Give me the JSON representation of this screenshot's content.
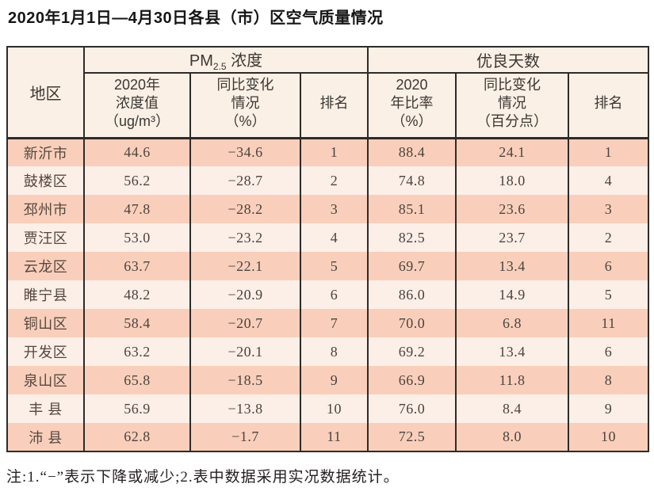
{
  "page": {
    "title": "2020年1月1日—4月30日各县（市）区空气质量情况",
    "footnote": "注:1.“−”表示下降或减少;2.表中数据采用实况数据统计。"
  },
  "colors": {
    "row_stripe_dark": "#f9cfbb",
    "row_stripe_light": "#fcefe8",
    "header_background": "#fbf0e5",
    "border": "#2f2b28",
    "data_text": "#4b433e"
  },
  "table": {
    "corner_header": "地区",
    "group_pm25": {
      "prefix": "PM",
      "sub": "2.5",
      "suffix": " 浓度"
    },
    "group_good_days": "优良天数",
    "subheaders": {
      "pm_value": {
        "l1": "2020年",
        "l2": "浓度值",
        "l3": "（ug/m³）"
      },
      "pm_change": {
        "l1": "同比变化",
        "l2": "情况",
        "l3": "（%）"
      },
      "pm_rank": "排名",
      "days_rate": {
        "l1": "2020",
        "l2": "年比率",
        "l3": "（%）"
      },
      "days_change": {
        "l1": "同比变化",
        "l2": "情况",
        "l3": "（百分点）"
      },
      "days_rank": "排名"
    },
    "rows": [
      {
        "region": "新沂市",
        "pm_value": "44.6",
        "pm_change": "−34.6",
        "pm_rank": "1",
        "days_rate": "88.4",
        "days_change": "24.1",
        "days_rank": "1"
      },
      {
        "region": "鼓楼区",
        "pm_value": "56.2",
        "pm_change": "−28.7",
        "pm_rank": "2",
        "days_rate": "74.8",
        "days_change": "18.0",
        "days_rank": "4"
      },
      {
        "region": "邳州市",
        "pm_value": "47.8",
        "pm_change": "−28.2",
        "pm_rank": "3",
        "days_rate": "85.1",
        "days_change": "23.6",
        "days_rank": "3"
      },
      {
        "region": "贾汪区",
        "pm_value": "53.0",
        "pm_change": "−23.2",
        "pm_rank": "4",
        "days_rate": "82.5",
        "days_change": "23.7",
        "days_rank": "2"
      },
      {
        "region": "云龙区",
        "pm_value": "63.7",
        "pm_change": "−22.1",
        "pm_rank": "5",
        "days_rate": "69.7",
        "days_change": "13.4",
        "days_rank": "6"
      },
      {
        "region": "睢宁县",
        "pm_value": "48.2",
        "pm_change": "−20.9",
        "pm_rank": "6",
        "days_rate": "86.0",
        "days_change": "14.9",
        "days_rank": "5"
      },
      {
        "region": "铜山区",
        "pm_value": "58.4",
        "pm_change": "−20.7",
        "pm_rank": "7",
        "days_rate": "70.0",
        "days_change": "6.8",
        "days_rank": "11"
      },
      {
        "region": "开发区",
        "pm_value": "63.2",
        "pm_change": "−20.1",
        "pm_rank": "8",
        "days_rate": "69.2",
        "days_change": "13.4",
        "days_rank": "6"
      },
      {
        "region": "泉山区",
        "pm_value": "65.8",
        "pm_change": "−18.5",
        "pm_rank": "9",
        "days_rate": "66.9",
        "days_change": "11.8",
        "days_rank": "8"
      },
      {
        "region": "丰 县",
        "pm_value": "56.9",
        "pm_change": "−13.8",
        "pm_rank": "10",
        "days_rate": "76.0",
        "days_change": "8.4",
        "days_rank": "9"
      },
      {
        "region": "沛 县",
        "pm_value": "62.8",
        "pm_change": "−1.7",
        "pm_rank": "11",
        "days_rate": "72.5",
        "days_change": "8.0",
        "days_rank": "10"
      }
    ]
  }
}
